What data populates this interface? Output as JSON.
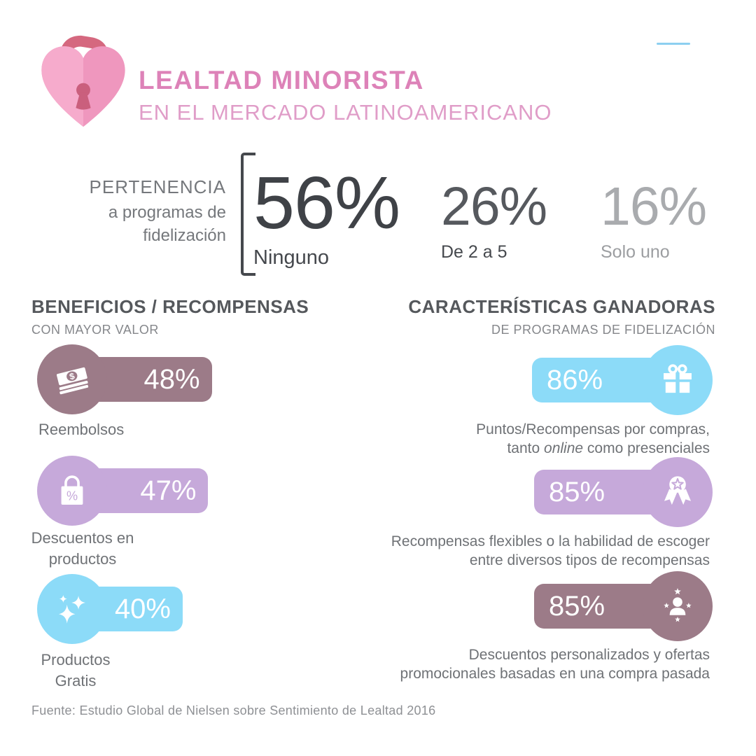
{
  "header": {
    "title_line1": "LEALTAD MINORISTA",
    "title_line2": "EN EL MERCADO LATINOAMERICANO",
    "accent_pink": "#dd82b8",
    "logo_icon": "heart-padlock-icon"
  },
  "decor": {
    "top_right_line_color": "#8ccff0"
  },
  "membership": {
    "label_line1": "PERTENENCIA",
    "label_line2": "a programas de",
    "label_line3": "fidelización",
    "stats": [
      {
        "value": "56%",
        "label": "Ninguno",
        "emphasis": "dark"
      },
      {
        "value": "26%",
        "label": "De 2 a 5",
        "emphasis": "medium"
      },
      {
        "value": "16%",
        "label": "Solo uno",
        "emphasis": "light"
      }
    ]
  },
  "left_section": {
    "title": "BENEFICIOS / RECOMPENSAS",
    "subtitle": "CON MAYOR VALOR",
    "items": [
      {
        "value": "48%",
        "value_num": 48,
        "color": "#9c7b88",
        "icon": "money-bills-icon",
        "label_line1": "Reembolsos",
        "label_line2": ""
      },
      {
        "value": "47%",
        "value_num": 47,
        "color": "#c6a9da",
        "icon": "shopping-bag-percent-icon",
        "label_line1": "Descuentos en",
        "label_line2": "productos"
      },
      {
        "value": "40%",
        "value_num": 40,
        "color": "#8cdbf8",
        "icon": "sparkles-icon",
        "label_line1": "Productos",
        "label_line2": "Gratis"
      }
    ]
  },
  "right_section": {
    "title": "CARACTERÍSTICAS GANADORAS",
    "subtitle": "DE PROGRAMAS DE FIDELIZACIÓN",
    "items": [
      {
        "value": "86%",
        "value_num": 86,
        "color": "#8cdbf8",
        "icon": "gift-icon",
        "caption_line1": "Puntos/Recompensas por compras,",
        "caption_line2_pre": "tanto ",
        "caption_line2_italic": "online",
        "caption_line2_post": " como presenciales"
      },
      {
        "value": "85%",
        "value_num": 85,
        "color": "#c6a9da",
        "icon": "award-ribbon-icon",
        "caption_line1": "Recompensas flexibles o la habilidad de escoger",
        "caption_line2": "entre diversos tipos de recompensas"
      },
      {
        "value": "85%",
        "value_num": 85,
        "color": "#9c7b88",
        "icon": "person-stars-icon",
        "caption_line1": "Descuentos personalizados y ofertas",
        "caption_line2": "promocionales basadas en una compra pasada"
      }
    ]
  },
  "footer": {
    "source": "Fuente: Estudio Global de Nielsen sobre Sentimiento de Lealtad 2016"
  },
  "chart_data": [
    {
      "type": "bar",
      "title": "Pertenencia a programas de fidelización",
      "categories": [
        "Ninguno",
        "De 2 a 5",
        "Solo uno"
      ],
      "values": [
        56,
        26,
        16
      ],
      "unit": "%"
    },
    {
      "type": "bar",
      "title": "Beneficios / Recompensas con mayor valor",
      "categories": [
        "Reembolsos",
        "Descuentos en productos",
        "Productos Gratis"
      ],
      "values": [
        48,
        47,
        40
      ],
      "unit": "%"
    },
    {
      "type": "bar",
      "title": "Características ganadoras de programas de fidelización",
      "categories": [
        "Puntos/Recompensas por compras, tanto online como presenciales",
        "Recompensas flexibles o la habilidad de escoger entre diversos tipos de recompensas",
        "Descuentos personalizados y ofertas promocionales basadas en una compra pasada"
      ],
      "values": [
        86,
        85,
        85
      ],
      "unit": "%"
    }
  ]
}
